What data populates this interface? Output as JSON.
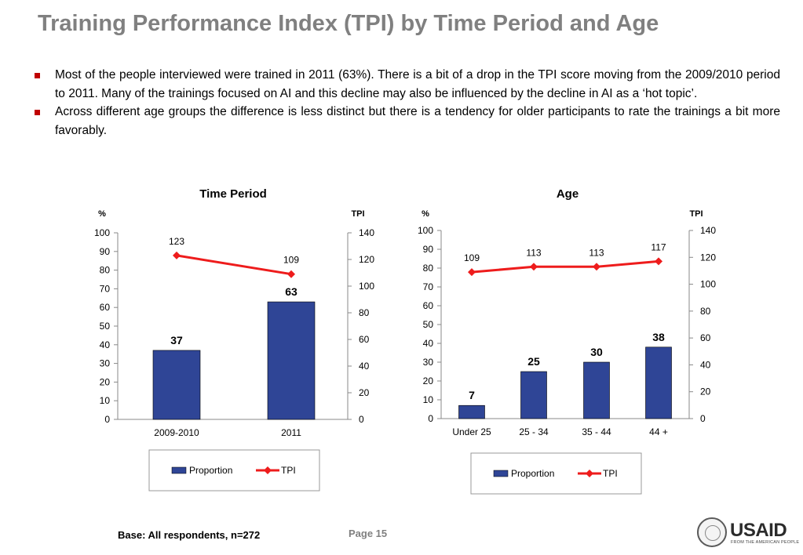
{
  "title": "Training Performance Index (TPI) by Time Period and Age",
  "bullets": [
    "Most of the people interviewed were trained in 2011 (63%). There is a bit of a drop in the TPI score moving from the 2009/2010 period to 2011. Many of the trainings focused on AI and this decline may also be influenced by the decline in AI as a ‘hot topic’.",
    "Across different age groups the difference is less distinct but there is a tendency for older participants to rate the trainings a bit more favorably."
  ],
  "colors": {
    "bar": "#2f4596",
    "line": "#ee1c1c",
    "title": "#808080",
    "bullet": "#c00000"
  },
  "chart_data": [
    {
      "type": "bar",
      "title": "Time Period",
      "y_left_label": "%",
      "y_right_label": "TPI",
      "categories": [
        "2009-2010",
        "2011"
      ],
      "y_left_range": [
        0,
        100
      ],
      "y_left_ticks": [
        "0",
        "10",
        "20",
        "30",
        "40",
        "50",
        "60",
        "70",
        "80",
        "90",
        "100"
      ],
      "y_right_range": [
        0,
        140
      ],
      "y_right_ticks": [
        "0",
        "20",
        "40",
        "60",
        "80",
        "100",
        "120",
        "140"
      ],
      "series": [
        {
          "name": "Proportion",
          "type": "bar",
          "axis": "left",
          "values": [
            37,
            63
          ]
        },
        {
          "name": "TPI",
          "type": "line",
          "axis": "right",
          "values": [
            123,
            109
          ]
        }
      ],
      "legend": [
        "Proportion",
        "TPI"
      ],
      "legend_position": "bottom"
    },
    {
      "type": "bar",
      "title": "Age",
      "y_left_label": "%",
      "y_right_label": "TPI",
      "categories": [
        "Under 25",
        "25 - 34",
        "35 - 44",
        "44 +"
      ],
      "y_left_range": [
        0,
        100
      ],
      "y_left_ticks": [
        "0",
        "10",
        "20",
        "30",
        "40",
        "50",
        "60",
        "70",
        "80",
        "90",
        "100"
      ],
      "y_right_range": [
        0,
        140
      ],
      "y_right_ticks": [
        "0",
        "20",
        "40",
        "60",
        "80",
        "100",
        "120",
        "140"
      ],
      "series": [
        {
          "name": "Proportion",
          "type": "bar",
          "axis": "left",
          "values": [
            7,
            25,
            30,
            38
          ]
        },
        {
          "name": "TPI",
          "type": "line",
          "axis": "right",
          "values": [
            109,
            113,
            113,
            117
          ]
        }
      ],
      "legend": [
        "Proportion",
        "TPI"
      ],
      "legend_position": "bottom"
    }
  ],
  "footer": {
    "base": "Base: All respondents, n=272",
    "page": "Page 15"
  },
  "logo": {
    "name": "USAID",
    "tagline": "FROM THE AMERICAN PEOPLE"
  }
}
